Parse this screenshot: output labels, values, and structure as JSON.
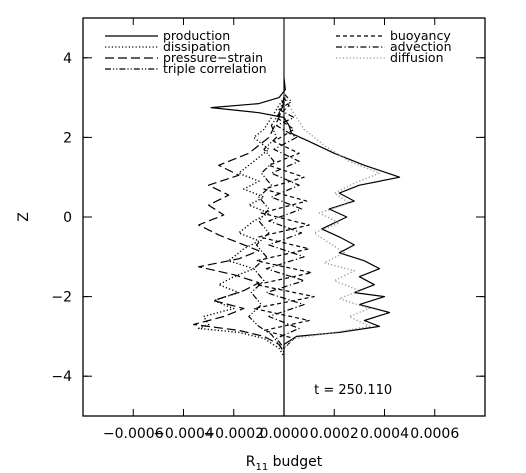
{
  "chart_data": {
    "type": "line",
    "title": "",
    "xlabel_main": "R",
    "xlabel_sub": "11",
    "xlabel_rest": " budget",
    "ylabel": "Z",
    "xlim": [
      -0.0008,
      0.0008
    ],
    "ylim": [
      -5,
      5
    ],
    "x_ticks": [
      -0.0006,
      -0.0004,
      -0.0002,
      0.0,
      0.0002,
      0.0004,
      0.0006
    ],
    "x_tick_labels": [
      "−0.0006",
      "−0.0004",
      "−0.0002",
      "0.0000",
      "0.0002",
      "0.0004",
      "0.0006"
    ],
    "y_ticks": [
      -4,
      -2,
      0,
      2,
      4
    ],
    "y_tick_labels": [
      "−4",
      "−2",
      "0",
      "2",
      "4"
    ],
    "grid": false,
    "legend_position": "top",
    "annotation": "t = 250.110",
    "series": [
      {
        "name": "production",
        "style": "solid",
        "color": "#000000",
        "points": [
          [
            0,
            3.5
          ],
          [
            5e-06,
            3.2
          ],
          [
            -2e-05,
            3.0
          ],
          [
            -0.0001,
            2.85
          ],
          [
            -0.00029,
            2.75
          ],
          [
            -0.0001,
            2.62
          ],
          [
            0,
            2.5
          ],
          [
            2e-05,
            2.3
          ],
          [
            3e-05,
            2.1
          ],
          [
            0.0001,
            1.9
          ],
          [
            0.0002,
            1.6
          ],
          [
            0.00032,
            1.3
          ],
          [
            0.00046,
            1.0
          ],
          [
            0.0003,
            0.8
          ],
          [
            0.00022,
            0.6
          ],
          [
            0.00028,
            0.4
          ],
          [
            0.00018,
            0.2
          ],
          [
            0.00025,
            0.0
          ],
          [
            0.00015,
            -0.3
          ],
          [
            0.00022,
            -0.5
          ],
          [
            0.00028,
            -0.7
          ],
          [
            0.00022,
            -0.9
          ],
          [
            0.00032,
            -1.1
          ],
          [
            0.00038,
            -1.3
          ],
          [
            0.0003,
            -1.5
          ],
          [
            0.00036,
            -1.7
          ],
          [
            0.00028,
            -1.9
          ],
          [
            0.0004,
            -2.0
          ],
          [
            0.0003,
            -2.2
          ],
          [
            0.00042,
            -2.4
          ],
          [
            0.00032,
            -2.6
          ],
          [
            0.00038,
            -2.75
          ],
          [
            0.00022,
            -2.9
          ],
          [
            5e-05,
            -3.0
          ],
          [
            0,
            -3.2
          ],
          [
            0,
            -5.0
          ]
        ]
      },
      {
        "name": "dissipation",
        "style": "dotted",
        "color": "#000000",
        "points": [
          [
            0,
            3.0
          ],
          [
            -5e-05,
            2.5
          ],
          [
            -8e-05,
            2.2
          ],
          [
            -0.00012,
            2.0
          ],
          [
            -6e-05,
            1.7
          ],
          [
            -0.00012,
            1.4
          ],
          [
            -0.00018,
            1.1
          ],
          [
            -0.0001,
            0.9
          ],
          [
            -0.00016,
            0.7
          ],
          [
            -8e-05,
            0.5
          ],
          [
            -0.00014,
            0.3
          ],
          [
            -6e-05,
            0.1
          ],
          [
            -0.00012,
            -0.1
          ],
          [
            -0.00018,
            -0.4
          ],
          [
            -0.0001,
            -0.6
          ],
          [
            -0.00016,
            -0.8
          ],
          [
            -0.00022,
            -1.1
          ],
          [
            -0.00012,
            -1.3
          ],
          [
            -0.0002,
            -1.5
          ],
          [
            -0.00026,
            -1.7
          ],
          [
            -0.00018,
            -1.9
          ],
          [
            -0.00028,
            -2.1
          ],
          [
            -0.0002,
            -2.3
          ],
          [
            -0.00032,
            -2.5
          ],
          [
            -0.0003,
            -2.7
          ],
          [
            -0.00034,
            -2.8
          ],
          [
            -0.00018,
            -2.9
          ],
          [
            -8e-05,
            -3.05
          ],
          [
            -2e-05,
            -3.3
          ],
          [
            0,
            -3.5
          ]
        ]
      },
      {
        "name": "pressure−strain",
        "style": "longdash",
        "color": "#000000",
        "points": [
          [
            0,
            2.9
          ],
          [
            -2e-05,
            2.5
          ],
          [
            -6e-05,
            2.0
          ],
          [
            -0.00014,
            1.6
          ],
          [
            -0.00026,
            1.3
          ],
          [
            -0.00018,
            1.05
          ],
          [
            -0.0003,
            0.8
          ],
          [
            -0.00022,
            0.55
          ],
          [
            -0.0003,
            0.3
          ],
          [
            -0.00024,
            0.05
          ],
          [
            -0.00034,
            -0.2
          ],
          [
            -0.00026,
            -0.45
          ],
          [
            -0.00018,
            -0.65
          ],
          [
            -0.0001,
            -0.85
          ],
          [
            -0.00018,
            -1.05
          ],
          [
            -0.00034,
            -1.25
          ],
          [
            -0.0002,
            -1.45
          ],
          [
            -0.0001,
            -1.65
          ],
          [
            -0.00016,
            -1.85
          ],
          [
            -0.00028,
            -2.1
          ],
          [
            -0.00016,
            -2.3
          ],
          [
            -0.00024,
            -2.5
          ],
          [
            -0.00036,
            -2.7
          ],
          [
            -0.00018,
            -2.85
          ],
          [
            -8e-05,
            -3.0
          ],
          [
            -2e-05,
            -3.2
          ],
          [
            0,
            -3.4
          ]
        ]
      },
      {
        "name": "triple correlation",
        "style": "dashdotdot",
        "color": "#000000",
        "points": [
          [
            0,
            3.0
          ],
          [
            -2e-05,
            2.6
          ],
          [
            -5e-05,
            2.3
          ],
          [
            -3e-05,
            2.0
          ],
          [
            -8e-05,
            1.7
          ],
          [
            -4e-05,
            1.4
          ],
          [
            -9e-05,
            1.1
          ],
          [
            -5e-05,
            0.8
          ],
          [
            -0.0001,
            0.5
          ],
          [
            -6e-05,
            0.2
          ],
          [
            -0.0001,
            -0.1
          ],
          [
            -6e-05,
            -0.4
          ],
          [
            -0.00011,
            -0.7
          ],
          [
            -7e-05,
            -1.0
          ],
          [
            -0.00012,
            -1.3
          ],
          [
            -8e-05,
            -1.6
          ],
          [
            -0.00013,
            -1.9
          ],
          [
            -9e-05,
            -2.2
          ],
          [
            -0.00014,
            -2.5
          ],
          [
            -0.0001,
            -2.75
          ],
          [
            -5e-05,
            -2.95
          ],
          [
            -2e-05,
            -3.2
          ],
          [
            0,
            -3.4
          ]
        ]
      },
      {
        "name": "buoyancy",
        "style": "shortdash",
        "color": "#000000",
        "points": [
          [
            0,
            3.0
          ],
          [
            2e-05,
            2.8
          ],
          [
            -3e-05,
            2.5
          ],
          [
            4e-05,
            2.2
          ],
          [
            -4e-05,
            1.9
          ],
          [
            6e-05,
            1.6
          ],
          [
            -6e-05,
            1.3
          ],
          [
            8e-05,
            1.0
          ],
          [
            -8e-05,
            0.7
          ],
          [
            9e-05,
            0.4
          ],
          [
            -9e-05,
            0.1
          ],
          [
            0.0001,
            -0.2
          ],
          [
            -0.0001,
            -0.5
          ],
          [
            0.0001,
            -0.8
          ],
          [
            -0.00011,
            -1.1
          ],
          [
            0.00011,
            -1.4
          ],
          [
            -0.00011,
            -1.7
          ],
          [
            0.00012,
            -2.0
          ],
          [
            -0.00012,
            -2.3
          ],
          [
            0.0001,
            -2.6
          ],
          [
            -8e-05,
            -2.85
          ],
          [
            4e-05,
            -3.05
          ],
          [
            0,
            -3.3
          ]
        ]
      },
      {
        "name": "advection",
        "style": "dashdot",
        "color": "#000000",
        "points": [
          [
            0,
            3.1
          ],
          [
            3e-05,
            2.9
          ],
          [
            -2e-05,
            2.7
          ],
          [
            4e-05,
            2.5
          ],
          [
            -3e-05,
            2.3
          ],
          [
            5e-05,
            2.0
          ],
          [
            -4e-05,
            1.7
          ],
          [
            6e-05,
            1.4
          ],
          [
            -5e-05,
            1.1
          ],
          [
            6e-05,
            0.8
          ],
          [
            -5e-05,
            0.5
          ],
          [
            7e-05,
            0.2
          ],
          [
            -6e-05,
            -0.1
          ],
          [
            7e-05,
            -0.4
          ],
          [
            -6e-05,
            -0.7
          ],
          [
            8e-05,
            -1.0
          ],
          [
            -7e-05,
            -1.3
          ],
          [
            8e-05,
            -1.6
          ],
          [
            -7e-05,
            -1.9
          ],
          [
            8e-05,
            -2.2
          ],
          [
            -6e-05,
            -2.5
          ],
          [
            6e-05,
            -2.8
          ],
          [
            -3e-05,
            -3.05
          ],
          [
            0,
            -3.3
          ]
        ]
      },
      {
        "name": "diffusion",
        "style": "dotted",
        "color": "#9a9a9a",
        "points": [
          [
            0,
            3.1
          ],
          [
            3e-05,
            2.7
          ],
          [
            8e-05,
            2.2
          ],
          [
            0.00016,
            1.8
          ],
          [
            0.00026,
            1.4
          ],
          [
            0.00038,
            1.1
          ],
          [
            0.00028,
            0.85
          ],
          [
            0.0002,
            0.6
          ],
          [
            0.00026,
            0.35
          ],
          [
            0.00014,
            0.1
          ],
          [
            0.00022,
            -0.15
          ],
          [
            0.00012,
            -0.4
          ],
          [
            0.00018,
            -0.65
          ],
          [
            0.00024,
            -0.9
          ],
          [
            0.00016,
            -1.15
          ],
          [
            0.00028,
            -1.35
          ],
          [
            0.0002,
            -1.6
          ],
          [
            0.0003,
            -1.85
          ],
          [
            0.00022,
            -2.05
          ],
          [
            0.00034,
            -2.3
          ],
          [
            0.00026,
            -2.5
          ],
          [
            0.00034,
            -2.75
          ],
          [
            0.0002,
            -2.9
          ],
          [
            4e-05,
            -3.05
          ],
          [
            0,
            -3.3
          ]
        ]
      }
    ]
  }
}
